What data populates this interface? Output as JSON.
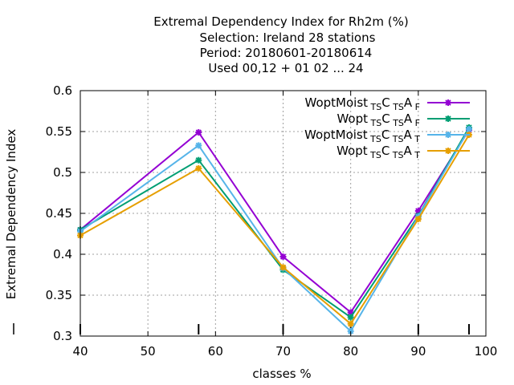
{
  "chart_data": {
    "type": "line",
    "title_lines": [
      "Extremal Dependency Index  for Rh2m (%)",
      "Selection: Ireland     28 stations",
      "Period: 20180601-20180614",
      "Used  00,12  + 01 02 ... 24"
    ],
    "xlabel": "classes %",
    "ylabel": "Extremal Dependency Index",
    "xlim": [
      40,
      100
    ],
    "ylim": [
      0.3,
      0.6
    ],
    "x_ticks": [
      40,
      50,
      60,
      70,
      80,
      90,
      100
    ],
    "x_tick_labels": [
      "40",
      "50",
      "60",
      "70",
      "80",
      "90",
      "100"
    ],
    "y_ticks": [
      0.3,
      0.35,
      0.4,
      0.45,
      0.5,
      0.55,
      0.6
    ],
    "y_tick_labels": [
      "0.3",
      "0.35",
      "0.4",
      "0.45",
      "0.5",
      "0.55",
      "0.6"
    ],
    "grid": true,
    "legend_position": "top-right",
    "x": [
      40,
      57.5,
      70,
      80,
      90,
      97.5
    ],
    "series": [
      {
        "name_parts": [
          "WoptMoist",
          "TS",
          "C",
          "TS",
          "A",
          "F"
        ],
        "color": "#9400d3",
        "values": [
          0.43,
          0.549,
          0.397,
          0.329,
          0.453,
          0.552
        ]
      },
      {
        "name_parts": [
          "Wopt",
          "TS",
          "C",
          "TS",
          "A",
          "F"
        ],
        "color": "#009e73",
        "values": [
          0.43,
          0.515,
          0.381,
          0.323,
          0.447,
          0.555
        ]
      },
      {
        "name_parts": [
          "WoptMoist",
          "TS",
          "C",
          "TS",
          "A",
          "T"
        ],
        "color": "#56b4e9",
        "values": [
          0.428,
          0.533,
          0.383,
          0.306,
          0.446,
          0.553
        ]
      },
      {
        "name_parts": [
          "Wopt",
          "TS",
          "C",
          "TS",
          "A",
          "T"
        ],
        "color": "#e69f00",
        "values": [
          0.423,
          0.505,
          0.384,
          0.315,
          0.443,
          0.546
        ]
      }
    ],
    "frequency_marks": [
      40,
      57.5,
      70,
      80,
      90,
      97.5
    ]
  }
}
